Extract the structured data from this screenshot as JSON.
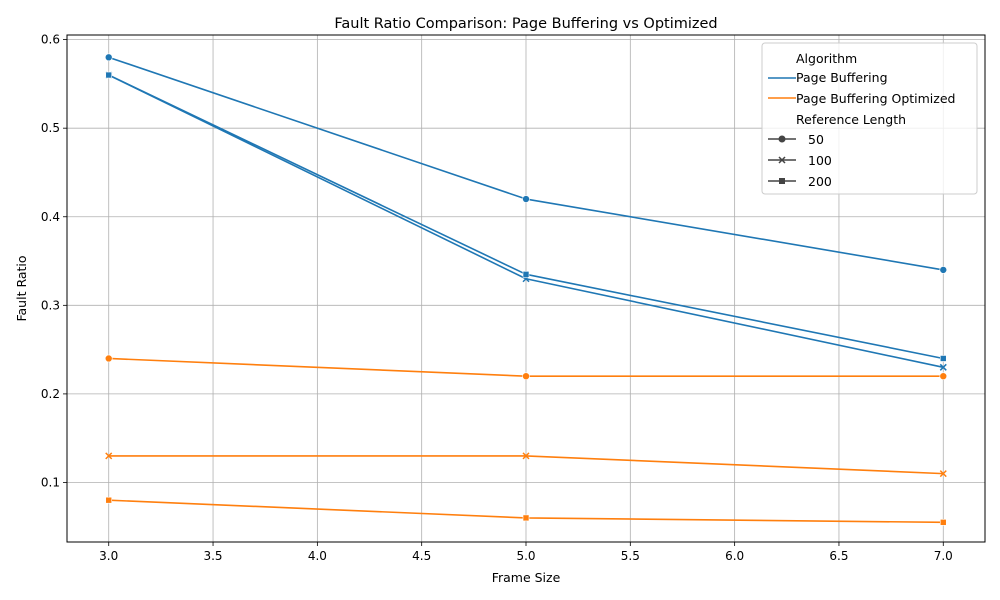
{
  "chart_data": {
    "type": "line",
    "title": "Fault Ratio Comparison: Page Buffering vs Optimized",
    "xlabel": "Frame Size",
    "ylabel": "Fault Ratio",
    "xlim": [
      2.8,
      7.2
    ],
    "ylim": [
      0.0328,
      0.6052
    ],
    "xticks": [
      3.0,
      3.5,
      4.0,
      4.5,
      5.0,
      5.5,
      6.0,
      6.5,
      7.0
    ],
    "yticks": [
      0.1,
      0.2,
      0.3,
      0.4,
      0.5,
      0.6
    ],
    "grid": true,
    "legend_position": "top-right",
    "x": [
      3,
      5,
      7
    ],
    "legend": {
      "hue_title": "Algorithm",
      "style_title": "Reference Length",
      "algorithms": [
        {
          "name": "Page Buffering",
          "color": "#1f77b4"
        },
        {
          "name": "Page Buffering Optimized",
          "color": "#ff7f0e"
        }
      ],
      "lengths": [
        {
          "name": "50",
          "marker": "circle"
        },
        {
          "name": "100",
          "marker": "x"
        },
        {
          "name": "200",
          "marker": "square"
        }
      ]
    },
    "series": [
      {
        "algorithm": "Page Buffering",
        "length": "50",
        "color": "#1f77b4",
        "marker": "circle",
        "values": [
          0.58,
          0.42,
          0.34
        ]
      },
      {
        "algorithm": "Page Buffering",
        "length": "100",
        "color": "#1f77b4",
        "marker": "x",
        "values": [
          0.56,
          0.33,
          0.23
        ]
      },
      {
        "algorithm": "Page Buffering",
        "length": "200",
        "color": "#1f77b4",
        "marker": "square",
        "values": [
          0.56,
          0.335,
          0.24
        ]
      },
      {
        "algorithm": "Page Buffering Optimized",
        "length": "50",
        "color": "#ff7f0e",
        "marker": "circle",
        "values": [
          0.24,
          0.22,
          0.22
        ]
      },
      {
        "algorithm": "Page Buffering Optimized",
        "length": "100",
        "color": "#ff7f0e",
        "marker": "x",
        "values": [
          0.13,
          0.13,
          0.11
        ]
      },
      {
        "algorithm": "Page Buffering Optimized",
        "length": "200",
        "color": "#ff7f0e",
        "marker": "square",
        "values": [
          0.08,
          0.06,
          0.055
        ]
      }
    ]
  }
}
